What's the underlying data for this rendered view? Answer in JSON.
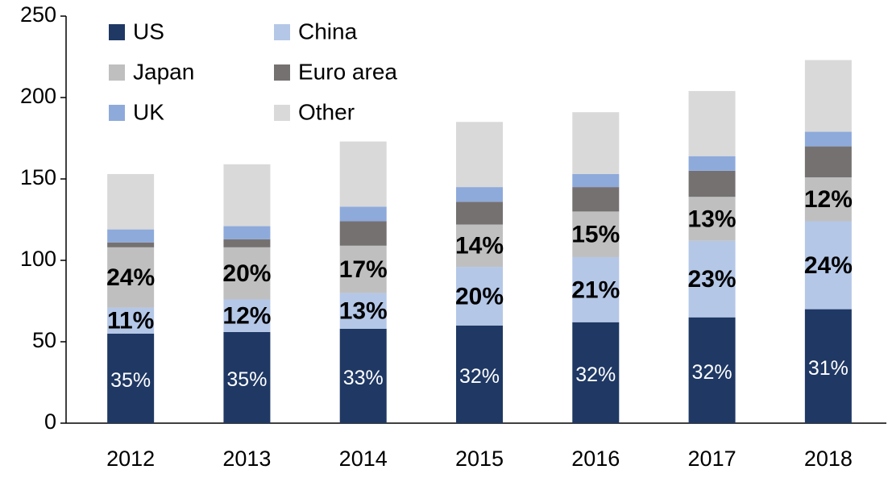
{
  "chart_data": {
    "type": "stacked-bar",
    "categories": [
      "2012",
      "2013",
      "2014",
      "2015",
      "2016",
      "2017",
      "2018"
    ],
    "series": [
      {
        "name": "US",
        "color": "#1f3864",
        "values": [
          55,
          56,
          58,
          60,
          62,
          65,
          70
        ],
        "share_labels": [
          "35%",
          "35%",
          "33%",
          "32%",
          "32%",
          "32%",
          "31%"
        ]
      },
      {
        "name": "China",
        "color": "#b4c7e7",
        "values": [
          16,
          20,
          22,
          36,
          40,
          47,
          54
        ],
        "share_labels": [
          "11%",
          "12%",
          "13%",
          "20%",
          "21%",
          "23%",
          "24%"
        ]
      },
      {
        "name": "Japan",
        "color": "#bfbfbf",
        "values": [
          37,
          32,
          29,
          26,
          28,
          27,
          27
        ],
        "share_labels": [
          "24%",
          "20%",
          "17%",
          "14%",
          "15%",
          "13%",
          "12%"
        ]
      },
      {
        "name": "Euro area",
        "color": "#767171",
        "values": [
          3,
          5,
          15,
          14,
          15,
          16,
          19
        ]
      },
      {
        "name": "UK",
        "color": "#8eaadb",
        "values": [
          8,
          8,
          9,
          9,
          8,
          9,
          9
        ]
      },
      {
        "name": "Other",
        "color": "#d9d9d9",
        "values": [
          34,
          38,
          40,
          40,
          38,
          40,
          44
        ]
      }
    ],
    "ylim": [
      0,
      250
    ],
    "yticks": [
      0,
      50,
      100,
      150,
      200,
      250
    ],
    "legend": "top-left"
  }
}
